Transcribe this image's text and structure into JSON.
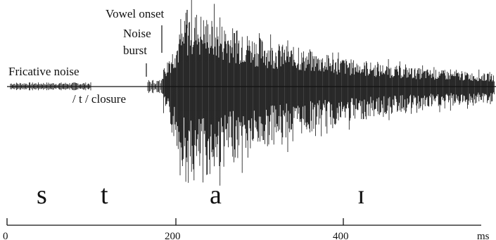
{
  "annotations": {
    "fricative_noise": "Fricative noise",
    "t_closure": "/ t / closure",
    "noise_burst_line1": "Noise",
    "noise_burst_line2": "burst",
    "vowel_onset": "Vowel onset"
  },
  "segments": [
    "s",
    "t",
    "a",
    "ɪ"
  ],
  "axis": {
    "unit": "ms",
    "ticks": [
      "0",
      "200",
      "400"
    ],
    "range_ms": [
      0,
      570
    ]
  },
  "waveform": {
    "fricative_ms": [
      0,
      100
    ],
    "closure_ms": [
      100,
      165
    ],
    "burst_ms": 165,
    "vowel_onset_ms": 184,
    "peak_ms": 215
  }
}
